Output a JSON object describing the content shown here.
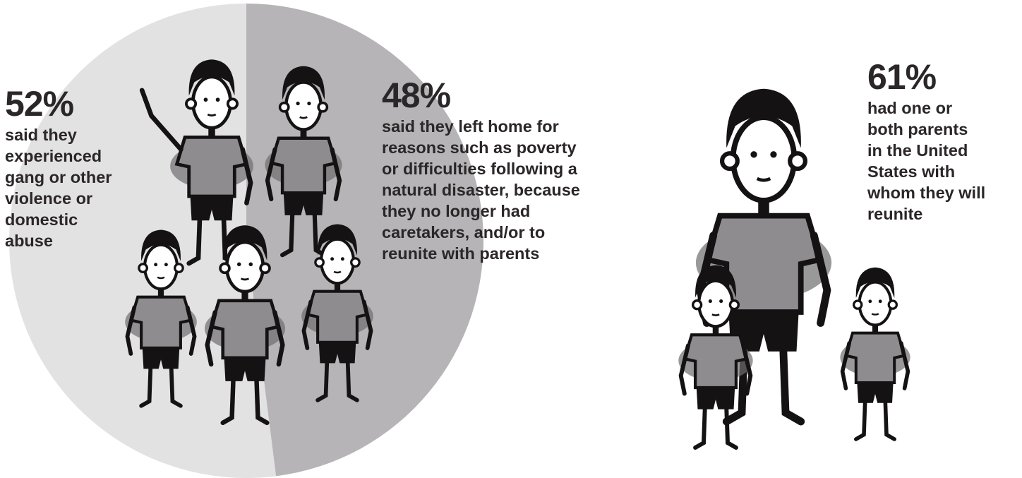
{
  "chart_data": {
    "type": "pie",
    "slices": [
      {
        "label": "52%",
        "value": 52,
        "description": "said they experienced gang or other violence or domestic abuse",
        "color": "#e3e2e3"
      },
      {
        "label": "48%",
        "value": 48,
        "description": "said they left home for reasons such as poverty or difficulties following a natural disaster, because they no longer had caretakers, and/or to reunite with parents",
        "color": "#b6b4b6"
      }
    ]
  },
  "left": {
    "pct": "52%",
    "lines": [
      "said they",
      "experienced",
      "gang or other",
      "violence or",
      "domestic",
      "abuse"
    ]
  },
  "right": {
    "pct": "48%",
    "lines": [
      "said they left home for",
      "reasons such as poverty",
      "or difficulties following a",
      "natural disaster, because",
      "they no longer had",
      "caretakers, and/or to",
      "reunite with parents"
    ]
  },
  "side": {
    "value": 61,
    "pct": "61%",
    "lines": [
      "had one or",
      "both parents",
      "in the United",
      "States with",
      "whom they will",
      "reunite"
    ]
  },
  "colors": {
    "text": "#2b2628",
    "ink": "#141213",
    "shirt": "#8e8c8e",
    "smudge": "#6f6d6f"
  },
  "icons": [
    "child-figure-icon",
    "mother-figure-icon"
  ]
}
